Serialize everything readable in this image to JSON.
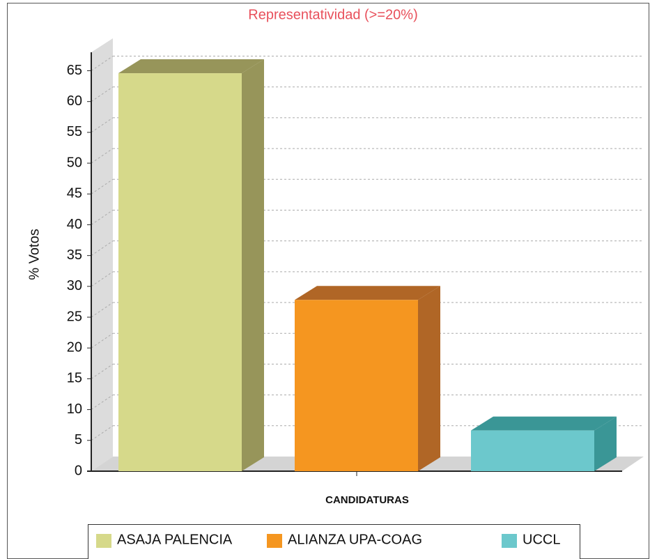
{
  "chart_data": {
    "type": "bar3d",
    "title": "Representatividad (>=20%)",
    "y_label": "% Votos",
    "x_label": "CANDIDATURAS",
    "categories": [
      "ASAJA PALENCIA",
      "ALIANZA UPA-COAG",
      "UCCL"
    ],
    "values": [
      64.6,
      27.8,
      6.6
    ],
    "colors": [
      "#d6d98a",
      "#f59620",
      "#6cc8cc"
    ],
    "side_colors": [
      "#97955a",
      "#b06626",
      "#3a9696"
    ],
    "ylim": [
      0,
      68
    ],
    "yticks": [
      0,
      5,
      10,
      15,
      20,
      25,
      30,
      35,
      40,
      45,
      50,
      55,
      60,
      65
    ],
    "grid": true,
    "legend": "bottom"
  }
}
